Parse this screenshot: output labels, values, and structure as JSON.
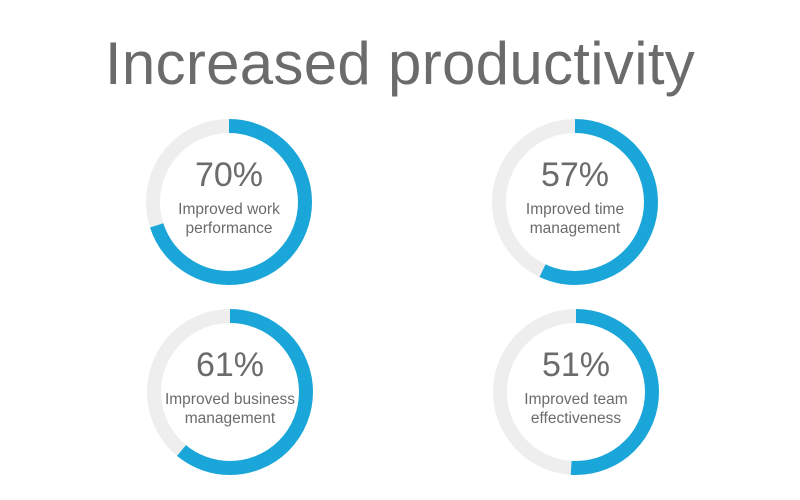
{
  "title": "Increased productivity",
  "colors": {
    "accent": "#1aa6d9",
    "track": "#eeeeee",
    "text": "#6b6b6b"
  },
  "chart_data": {
    "type": "pie",
    "items": [
      {
        "value": 70,
        "label": "70%",
        "line1": "Improved work",
        "line2": "performance"
      },
      {
        "value": 57,
        "label": "57%",
        "line1": "Improved time",
        "line2": "management"
      },
      {
        "value": 61,
        "label": "61%",
        "line1": "Improved business",
        "line2": "management"
      },
      {
        "value": 51,
        "label": "51%",
        "line1": "Improved team",
        "line2": "effectiveness"
      }
    ]
  }
}
